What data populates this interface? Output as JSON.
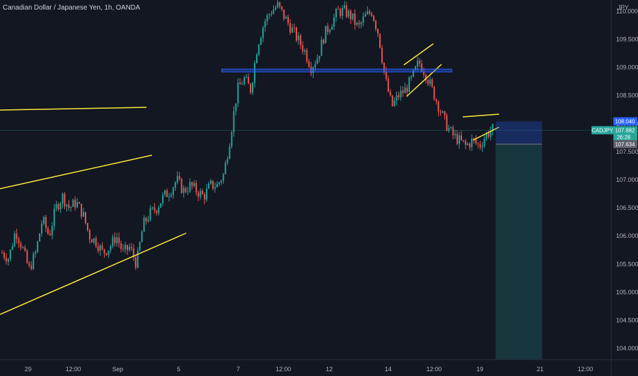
{
  "header": {
    "title": "Canadian Dollar / Japanese Yen, 1h, OANDA"
  },
  "colors": {
    "background": "#131722",
    "up": "#26a69a",
    "down": "#ef5350",
    "trendline": "#ffeb3b",
    "zone": "#2962ff",
    "stop_zone": "#2962ff",
    "target_zone": "#26a69a",
    "axis_text": "#b2b5be"
  },
  "chart_data": {
    "type": "candlestick",
    "symbol": "CADJPY",
    "y_unit": "JPY",
    "ylim": [
      103.8,
      110.2
    ],
    "y_ticks": [
      "110.000",
      "109.500",
      "109.000",
      "108.500",
      "108.000",
      "107.500",
      "107.000",
      "106.500",
      "106.000",
      "105.500",
      "105.000",
      "104.500",
      "104.000"
    ],
    "x_tick_labels": [
      "29",
      "12:00",
      "Sep",
      "5",
      "7",
      "12:00",
      "12",
      "14",
      "12:00",
      "19",
      "21",
      "12:00"
    ],
    "last_price": {
      "symbol": "CADJPY",
      "value": "107.882",
      "countdown": "26:28"
    },
    "position": {
      "entry": "107.634",
      "stop": "108.040",
      "target": 103.8
    },
    "horizontal_zone": [
      108.92,
      108.97
    ],
    "price_path": [
      105.7,
      105.6,
      106.1,
      105.8,
      105.4,
      105.7,
      106.3,
      106.0,
      106.5,
      106.7,
      106.5,
      106.6,
      106.4,
      106.0,
      105.9,
      105.7,
      105.8,
      106.0,
      105.7,
      105.8,
      105.5,
      106.2,
      106.4,
      106.5,
      106.7,
      106.8,
      107.0,
      106.8,
      106.9,
      106.8,
      106.7,
      106.9,
      106.9,
      107.1,
      107.8,
      108.6,
      108.8,
      108.6,
      109.4,
      109.8,
      110.0,
      110.1,
      109.9,
      109.7,
      109.5,
      109.3,
      109.0,
      109.2,
      109.6,
      109.8,
      110.0,
      110.0,
      109.9,
      109.7,
      109.9,
      110.0,
      109.6,
      108.8,
      108.3,
      108.5,
      108.6,
      108.8,
      109.1,
      108.9,
      108.6,
      108.3,
      108.0,
      107.8,
      107.7,
      107.6,
      107.7,
      107.6,
      107.8,
      107.9
    ]
  }
}
